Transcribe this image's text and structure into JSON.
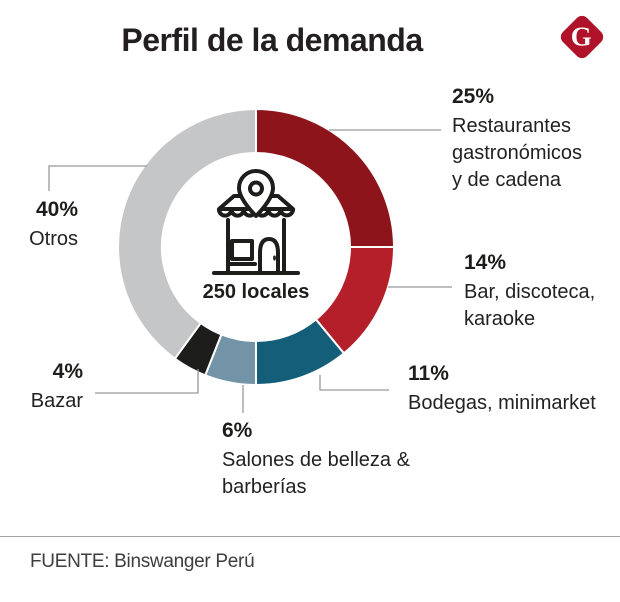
{
  "title": "Perfil de la demanda",
  "logo": {
    "letter": "G",
    "color": "#b01329"
  },
  "center": {
    "label": "250 locales",
    "icon": "store-with-location-pin"
  },
  "chart_data": {
    "type": "donut",
    "title": "Perfil de la demanda",
    "center_label": "250 locales",
    "units": "%",
    "direction": "clockwise",
    "start_angle_deg": 0,
    "separator_color": "#ffffff",
    "leader_line_color": "#999999",
    "segments": [
      {
        "label": "Restaurantes gastronómicos y de cadena",
        "pct_label": "25%",
        "value": 25,
        "color": "#8d141b"
      },
      {
        "label": "Bar, discoteca, karaoke",
        "pct_label": "14%",
        "value": 14,
        "color": "#b41f2a"
      },
      {
        "label": "Bodegas, minimarket",
        "pct_label": "11%",
        "value": 11,
        "color": "#155e79"
      },
      {
        "label": "Salones de belleza & barberías",
        "pct_label": "6%",
        "value": 6,
        "color": "#7294a6"
      },
      {
        "label": "Bazar",
        "pct_label": "4%",
        "value": 4,
        "color": "#1d1d1b"
      },
      {
        "label": "Otros",
        "pct_label": "40%",
        "value": 40,
        "color": "#c5c6c8"
      }
    ]
  },
  "footer": {
    "source": "FUENTE: Binswanger Perú"
  }
}
